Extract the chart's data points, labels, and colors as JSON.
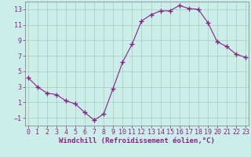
{
  "x": [
    0,
    1,
    2,
    3,
    4,
    5,
    6,
    7,
    8,
    9,
    10,
    11,
    12,
    13,
    14,
    15,
    16,
    17,
    18,
    19,
    20,
    21,
    22,
    23
  ],
  "y": [
    4.2,
    3.0,
    2.2,
    2.0,
    1.2,
    0.8,
    -0.3,
    -1.3,
    -0.5,
    2.8,
    6.2,
    8.5,
    11.5,
    12.3,
    12.8,
    12.8,
    13.5,
    13.1,
    13.0,
    11.3,
    8.8,
    8.2,
    7.2,
    6.8
  ],
  "line_color": "#882288",
  "marker": "+",
  "marker_size": 4,
  "bg_color": "#cceee8",
  "grid_color": "#aaccbb",
  "axis_color": "#882288",
  "xlabel": "Windchill (Refroidissement éolien,°C)",
  "xlabel_fontsize": 6.5,
  "tick_fontsize": 6.0,
  "ylim": [
    -2,
    14
  ],
  "yticks": [
    -1,
    1,
    3,
    5,
    7,
    9,
    11,
    13
  ],
  "xticks": [
    0,
    1,
    2,
    3,
    4,
    5,
    6,
    7,
    8,
    9,
    10,
    11,
    12,
    13,
    14,
    15,
    16,
    17,
    18,
    19,
    20,
    21,
    22,
    23
  ],
  "xlim": [
    -0.3,
    23.3
  ],
  "spine_color": "#888899"
}
